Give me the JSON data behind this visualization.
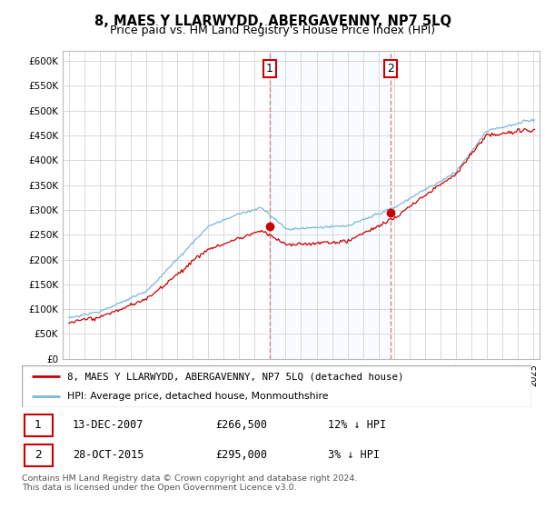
{
  "title": "8, MAES Y LLARWYDD, ABERGAVENNY, NP7 5LQ",
  "subtitle": "Price paid vs. HM Land Registry's House Price Index (HPI)",
  "legend_line1": "8, MAES Y LLARWYDD, ABERGAVENNY, NP7 5LQ (detached house)",
  "legend_line2": "HPI: Average price, detached house, Monmouthshire",
  "transaction1_date": "13-DEC-2007",
  "transaction1_price": "£266,500",
  "transaction1_hpi": "12% ↓ HPI",
  "transaction2_date": "28-OCT-2015",
  "transaction2_price": "£295,000",
  "transaction2_hpi": "3% ↓ HPI",
  "footer": "Contains HM Land Registry data © Crown copyright and database right 2024.\nThis data is licensed under the Open Government Licence v3.0.",
  "hpi_color": "#7ab8d9",
  "price_color": "#cc0000",
  "dashed_color": "#e08080",
  "shade_color": "#ddeeff",
  "ylim_min": 0,
  "ylim_max": 620000,
  "yticks": [
    0,
    50000,
    100000,
    150000,
    200000,
    250000,
    300000,
    350000,
    400000,
    450000,
    500000,
    550000,
    600000
  ],
  "t1_year": 2007.958,
  "t1_price": 266500,
  "t2_year": 2015.792,
  "t2_price": 295000
}
